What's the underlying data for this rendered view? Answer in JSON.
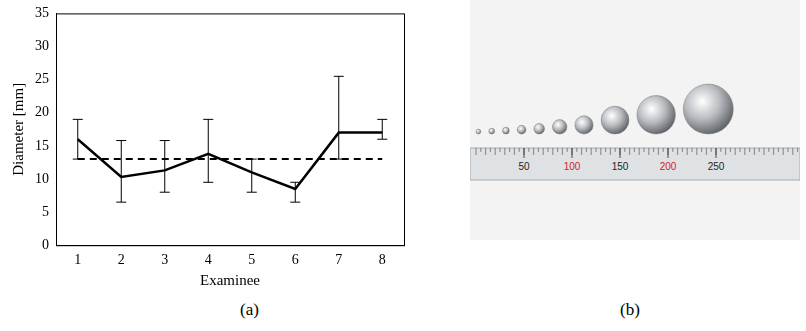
{
  "chart_data": {
    "type": "line",
    "x_label": "Examinee",
    "y_label": "Diameter [mm]",
    "categories": [
      1,
      2,
      3,
      4,
      5,
      6,
      7,
      8
    ],
    "values": [
      16,
      10.3,
      11.3,
      13.8,
      11,
      8.5,
      17,
      17
    ],
    "error_lower": [
      13,
      6.5,
      8,
      9.5,
      8,
      6.5,
      13,
      16
    ],
    "error_upper": [
      19,
      15.8,
      15.8,
      19,
      13,
      9.5,
      25.5,
      19
    ],
    "color": "#000000",
    "line_style": "solid",
    "reference_line": {
      "value": 13,
      "line_style": "dashed",
      "color": "#000000"
    },
    "ylim": [
      0,
      35
    ],
    "yticks": [
      0,
      5,
      10,
      15,
      20,
      25,
      30,
      35
    ],
    "grid": false,
    "panel_label": "(a)"
  },
  "photo": {
    "panel_label": "(b)",
    "ball_diameters": [
      5,
      6,
      7,
      9,
      11,
      15,
      19,
      29,
      40,
      52
    ],
    "ruler": {
      "ticks": [
        50,
        100,
        150,
        200,
        250
      ],
      "colors": [
        "#222222",
        "#d42020",
        "#222222",
        "#d42020",
        "#222222"
      ]
    }
  }
}
